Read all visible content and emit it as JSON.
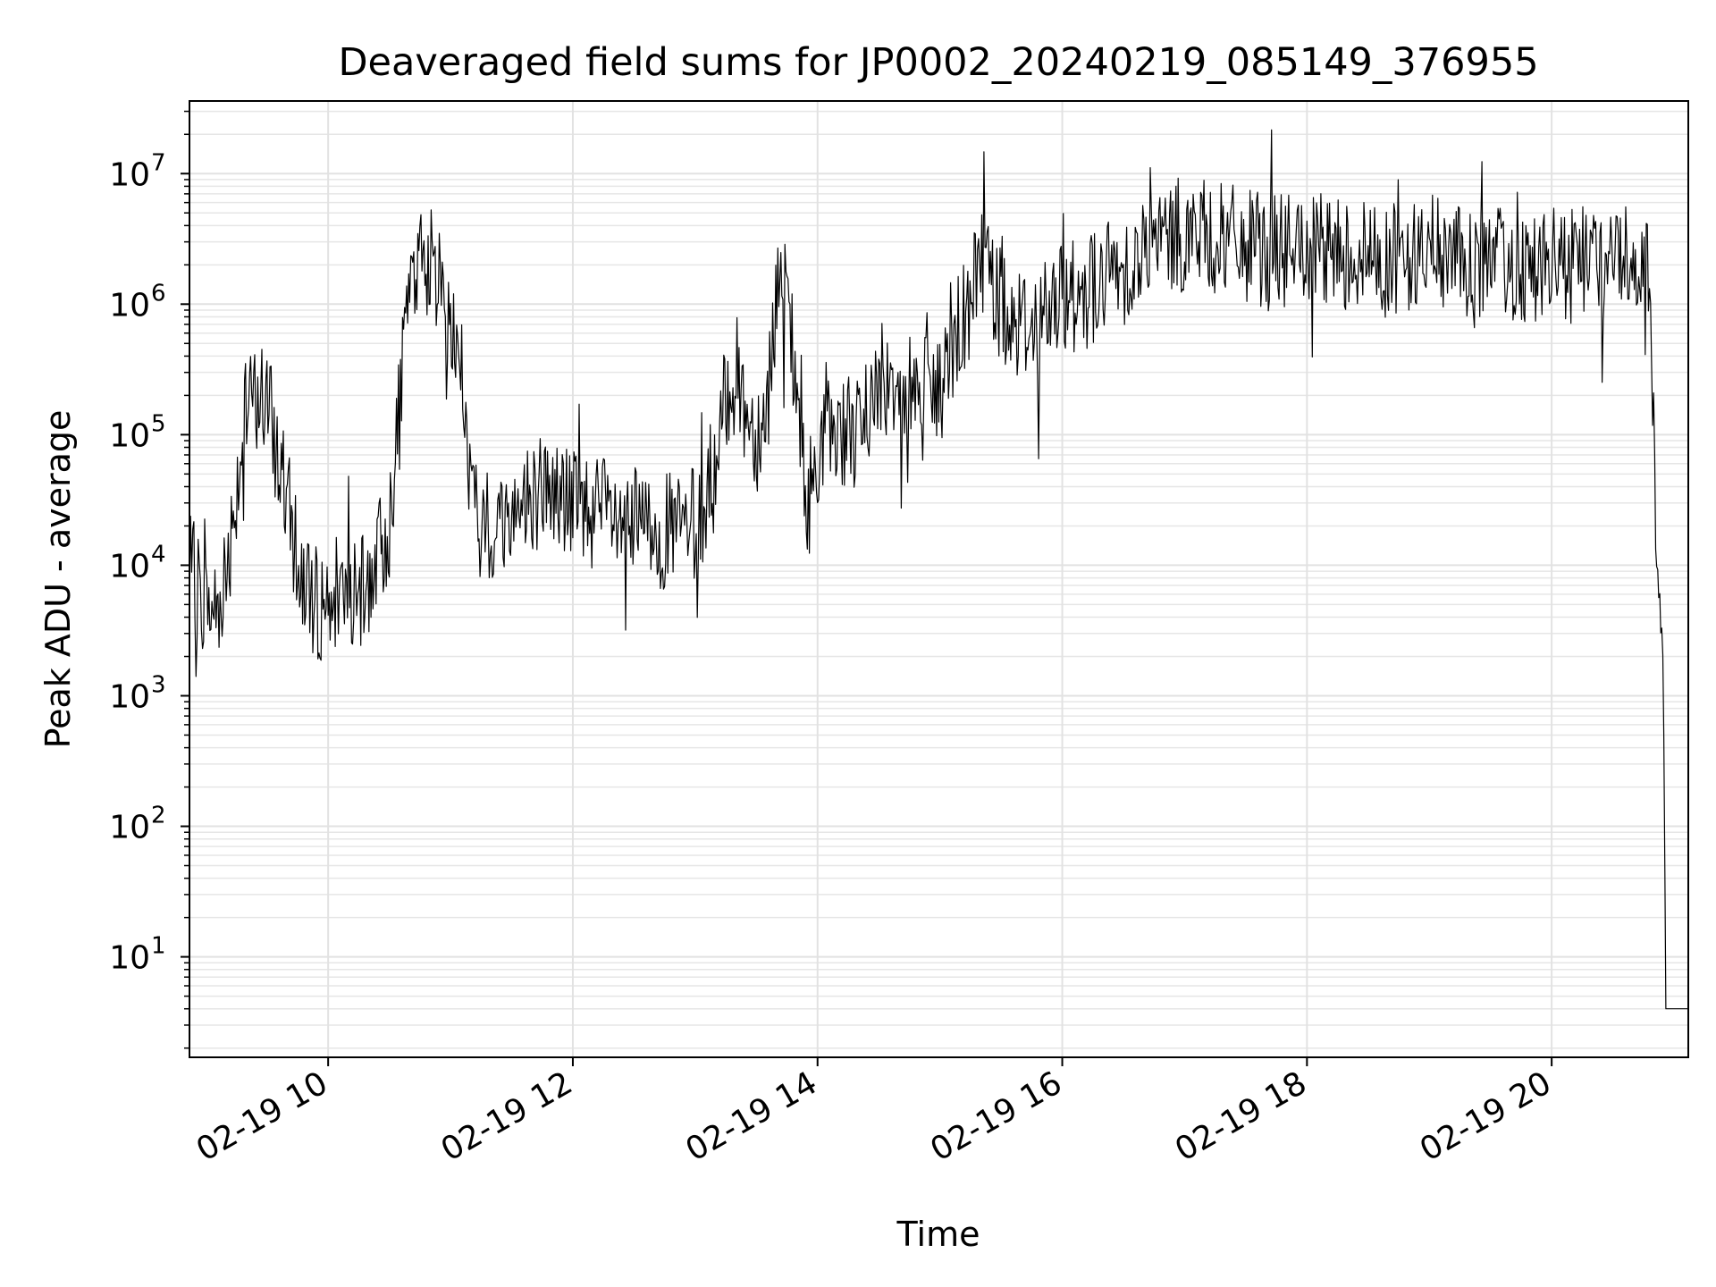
{
  "chart_data": {
    "type": "line",
    "title": "Deaveraged field sums for JP0002_20240219_085149_376955",
    "xlabel": "Time",
    "ylabel": "Peak ADU - average",
    "y_scale": "log",
    "ylim": [
      1.7,
      36000000
    ],
    "xlim": [
      "2024-02-19 08:52",
      "2024-02-19 21:07"
    ],
    "grid": true,
    "x_ticks": [
      {
        "t": "2024-02-19 10:00",
        "label": "02-19 10"
      },
      {
        "t": "2024-02-19 12:00",
        "label": "02-19 12"
      },
      {
        "t": "2024-02-19 14:00",
        "label": "02-19 14"
      },
      {
        "t": "2024-02-19 16:00",
        "label": "02-19 16"
      },
      {
        "t": "2024-02-19 18:00",
        "label": "02-19 18"
      },
      {
        "t": "2024-02-19 20:00",
        "label": "02-19 20"
      }
    ],
    "y_ticks": [
      {
        "value": 10,
        "base": "10",
        "exp": "1"
      },
      {
        "value": 100,
        "base": "10",
        "exp": "2"
      },
      {
        "value": 1000,
        "base": "10",
        "exp": "3"
      },
      {
        "value": 10000,
        "base": "10",
        "exp": "4"
      },
      {
        "value": 100000,
        "base": "10",
        "exp": "5"
      },
      {
        "value": 1000000,
        "base": "10",
        "exp": "6"
      },
      {
        "value": 10000000,
        "base": "10",
        "exp": "7"
      }
    ],
    "series": [
      {
        "color": "#000000",
        "points": [
          [
            "2024-02-19 08:52",
            9000
          ],
          [
            "2024-02-19 09:00",
            5000
          ],
          [
            "2024-02-19 09:05",
            4500
          ],
          [
            "2024-02-19 09:10",
            9000
          ],
          [
            "2024-02-19 09:15",
            40000
          ],
          [
            "2024-02-19 09:20",
            150000
          ],
          [
            "2024-02-19 09:25",
            200000
          ],
          [
            "2024-02-19 09:30",
            180000
          ],
          [
            "2024-02-19 09:35",
            70000
          ],
          [
            "2024-02-19 09:40",
            30000
          ],
          [
            "2024-02-19 09:45",
            10000
          ],
          [
            "2024-02-19 09:50",
            7000
          ],
          [
            "2024-02-19 09:55",
            5000
          ],
          [
            "2024-02-19 10:00",
            5500
          ],
          [
            "2024-02-19 10:05",
            7000
          ],
          [
            "2024-02-19 10:10",
            6000
          ],
          [
            "2024-02-19 10:15",
            5000
          ],
          [
            "2024-02-19 10:20",
            8000
          ],
          [
            "2024-02-19 10:25",
            12000
          ],
          [
            "2024-02-19 10:30",
            20000
          ],
          [
            "2024-02-19 10:35",
            150000
          ],
          [
            "2024-02-19 10:40",
            1500000
          ],
          [
            "2024-02-19 10:45",
            2200000
          ],
          [
            "2024-02-19 10:50",
            2000000
          ],
          [
            "2024-02-19 10:55",
            1500000
          ],
          [
            "2024-02-19 11:00",
            800000
          ],
          [
            "2024-02-19 11:05",
            300000
          ],
          [
            "2024-02-19 11:10",
            40000
          ],
          [
            "2024-02-19 11:15",
            15000
          ],
          [
            "2024-02-19 11:20",
            18000
          ],
          [
            "2024-02-19 11:30",
            25000
          ],
          [
            "2024-02-19 11:45",
            40000
          ],
          [
            "2024-02-19 12:00",
            30000
          ],
          [
            "2024-02-19 12:15",
            25000
          ],
          [
            "2024-02-19 12:30",
            20000
          ],
          [
            "2024-02-19 12:45",
            18000
          ],
          [
            "2024-02-19 13:00",
            20000
          ],
          [
            "2024-02-19 13:10",
            40000
          ],
          [
            "2024-02-19 13:15",
            200000
          ],
          [
            "2024-02-19 13:20",
            300000
          ],
          [
            "2024-02-19 13:25",
            150000
          ],
          [
            "2024-02-19 13:30",
            100000
          ],
          [
            "2024-02-19 13:35",
            150000
          ],
          [
            "2024-02-19 13:40",
            1500000
          ],
          [
            "2024-02-19 13:45",
            1000000
          ],
          [
            "2024-02-19 13:50",
            200000
          ],
          [
            "2024-02-19 13:55",
            20000
          ],
          [
            "2024-02-19 14:00",
            80000
          ],
          [
            "2024-02-19 14:10",
            120000
          ],
          [
            "2024-02-19 14:20",
            100000
          ],
          [
            "2024-02-19 14:30",
            250000
          ],
          [
            "2024-02-19 14:40",
            300000
          ],
          [
            "2024-02-19 14:50",
            250000
          ],
          [
            "2024-02-19 15:00",
            200000
          ],
          [
            "2024-02-19 15:10",
            700000
          ],
          [
            "2024-02-19 15:20",
            2500000
          ],
          [
            "2024-02-19 15:30",
            1000000
          ],
          [
            "2024-02-19 15:40",
            700000
          ],
          [
            "2024-02-19 15:50",
            800000
          ],
          [
            "2024-02-19 16:00",
            1000000
          ],
          [
            "2024-02-19 16:20",
            1500000
          ],
          [
            "2024-02-19 16:40",
            2500000
          ],
          [
            "2024-02-19 17:00",
            3500000
          ],
          [
            "2024-02-19 17:20",
            3000000
          ],
          [
            "2024-02-19 17:40",
            2500000
          ],
          [
            "2024-02-19 18:00",
            2500000
          ],
          [
            "2024-02-19 18:20",
            2500000
          ],
          [
            "2024-02-19 18:40",
            2200000
          ],
          [
            "2024-02-19 19:00",
            2500000
          ],
          [
            "2024-02-19 19:20",
            2000000
          ],
          [
            "2024-02-19 19:40",
            2000000
          ],
          [
            "2024-02-19 20:00",
            2000000
          ],
          [
            "2024-02-19 20:20",
            2000000
          ],
          [
            "2024-02-19 20:40",
            2500000
          ],
          [
            "2024-02-19 20:48",
            1500000
          ],
          [
            "2024-02-19 20:50",
            80000
          ],
          [
            "2024-02-19 20:52",
            10000
          ],
          [
            "2024-02-19 20:53",
            6000
          ],
          [
            "2024-02-19 20:54",
            1500
          ],
          [
            "2024-02-19 20:55",
            500
          ],
          [
            "2024-02-19 20:56",
            4
          ],
          [
            "2024-02-19 21:07",
            4
          ]
        ]
      }
    ]
  }
}
